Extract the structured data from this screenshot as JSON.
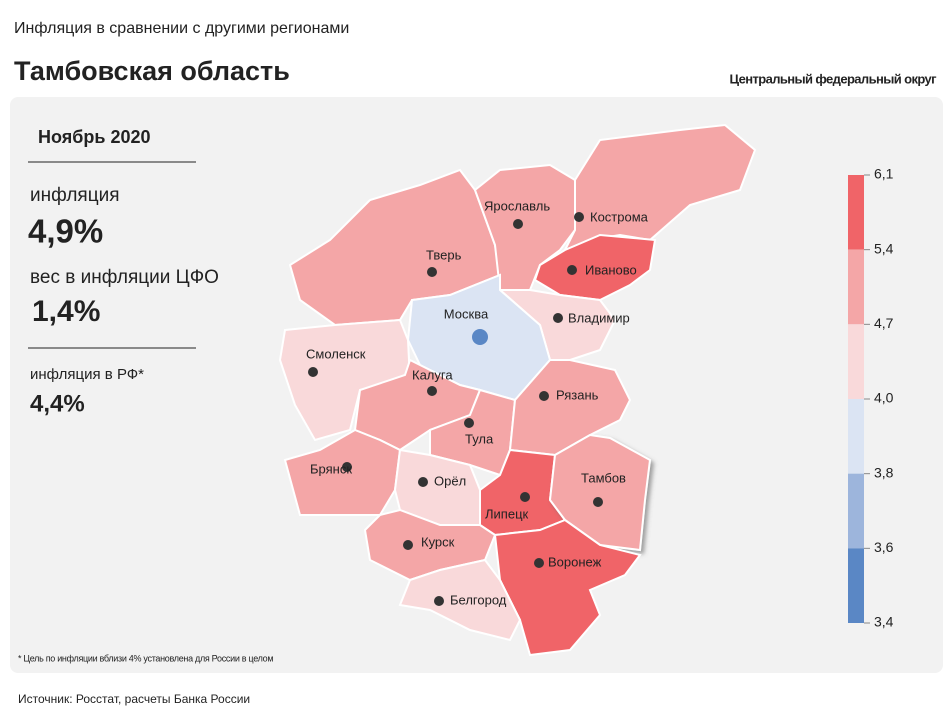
{
  "header": {
    "kicker": "Инфляция в сравнении с другими регионами",
    "title": "Тамбовская область",
    "district": "Центральный федеральный округ"
  },
  "stats": {
    "period": "Ноябрь 2020",
    "inflation_label": "инфляция",
    "inflation": "4,9%",
    "weight_label": "вес в инфляции ЦФО",
    "weight": "1,4%",
    "rf_label": "инфляция  в РФ*",
    "rf": "4,4%"
  },
  "footnote": "* Цель по инфляции вблизи 4% установлена для России в целом",
  "source": "Источник: Росстат, расчеты Банка России",
  "legend": {
    "ticks": [
      {
        "value": 6.1,
        "label": "6,1"
      },
      {
        "value": 5.4,
        "label": "5,4"
      },
      {
        "value": 4.7,
        "label": "4,7"
      },
      {
        "value": 4.0,
        "label": "4,0"
      },
      {
        "value": 3.8,
        "label": "3,8"
      },
      {
        "value": 3.6,
        "label": "3,6"
      },
      {
        "value": 3.4,
        "label": "3,4"
      }
    ],
    "colors": [
      "#f06468",
      "#f4a6a7",
      "#f9d9da",
      "#dbe4f3",
      "#9db5dc",
      "#5a87c5"
    ]
  },
  "regions": [
    {
      "name": "Тверь",
      "color": "#f4a6a7"
    },
    {
      "name": "Ярославль",
      "color": "#f4a6a7"
    },
    {
      "name": "Кострома",
      "color": "#f4a6a7"
    },
    {
      "name": "Иваново",
      "color": "#f06468"
    },
    {
      "name": "Владимир",
      "color": "#f9d9da"
    },
    {
      "name": "Москва",
      "color": "#dbe4f3"
    },
    {
      "name": "Смоленск",
      "color": "#f9d9da"
    },
    {
      "name": "Калуга",
      "color": "#f4a6a7"
    },
    {
      "name": "Тула",
      "color": "#f4a6a7"
    },
    {
      "name": "Рязань",
      "color": "#f4a6a7"
    },
    {
      "name": "Брянск",
      "color": "#f4a6a7"
    },
    {
      "name": "Орёл",
      "color": "#f9d9da"
    },
    {
      "name": "Липецк",
      "color": "#f06468"
    },
    {
      "name": "Тамбов",
      "color": "#f4a6a7"
    },
    {
      "name": "Курск",
      "color": "#f4a6a7"
    },
    {
      "name": "Воронеж",
      "color": "#f06468"
    },
    {
      "name": "Белгород",
      "color": "#f9d9da"
    }
  ]
}
